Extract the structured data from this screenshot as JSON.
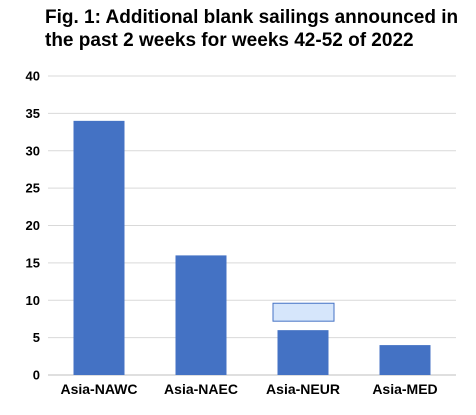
{
  "chart_data": {
    "type": "bar",
    "title": "Fig. 1: Additional blank sailings announced in the past 2 weeks for weeks 42-52 of 2022",
    "categories": [
      "Asia-NAWC",
      "Asia-NAEC",
      "Asia-NEUR",
      "Asia-MED"
    ],
    "values": [
      34,
      16,
      6,
      4
    ],
    "xlabel": "",
    "ylabel": "",
    "ylim": [
      0,
      40
    ],
    "yticks": [
      0,
      5,
      10,
      15,
      20,
      25,
      30,
      35,
      40
    ],
    "grid": true,
    "legend": "none",
    "colors": {
      "bar": "#4472c4",
      "grid": "#d9d9d9",
      "axis": "#bfbfbf",
      "overlay_fill": "#d6e6fb",
      "overlay_stroke": "#4472c4"
    }
  }
}
